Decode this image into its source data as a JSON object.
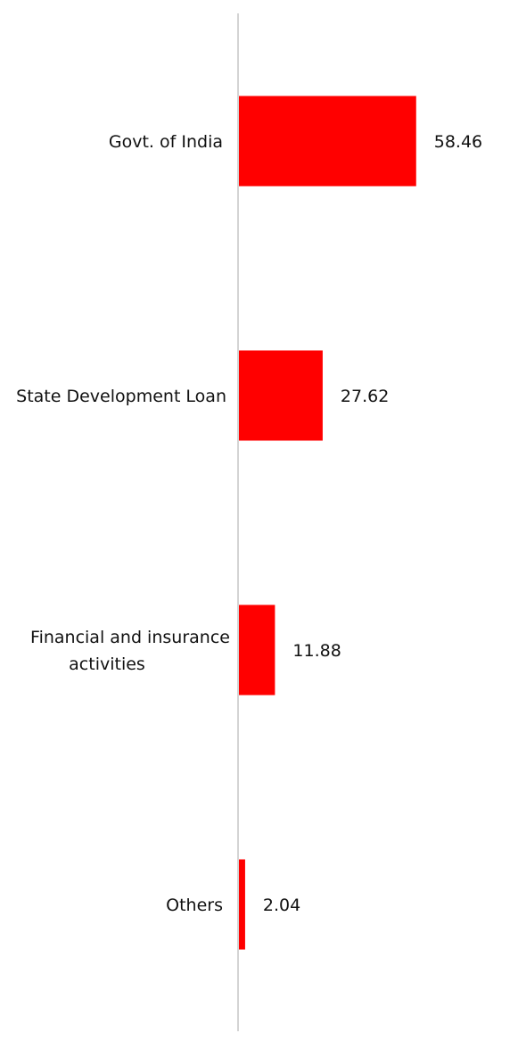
{
  "chart_data": {
    "type": "bar",
    "orientation": "horizontal",
    "categories": [
      "Govt. of India",
      "State Development Loan",
      "Financial and insurance activities",
      "Others"
    ],
    "values": [
      58.46,
      27.62,
      11.88,
      2.04
    ],
    "value_labels": [
      "58.46",
      "27.62",
      "11.88",
      "2.04"
    ],
    "title": "",
    "xlabel": "",
    "ylabel": "",
    "grid": false,
    "legend": "none",
    "colors": {
      "bar": "#ff0000",
      "axis": "#d4d4d4",
      "text": "#111111"
    }
  }
}
